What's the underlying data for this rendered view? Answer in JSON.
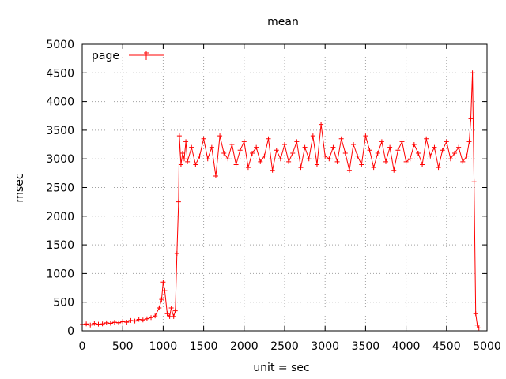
{
  "chart_data": {
    "type": "line",
    "title": "mean",
    "xlabel": "unit = sec",
    "ylabel": "msec",
    "xlim": [
      0,
      5000
    ],
    "ylim": [
      0,
      5000
    ],
    "x_ticks": [
      "0",
      "500",
      "1000",
      "1500",
      "2000",
      "2500",
      "3000",
      "3500",
      "4000",
      "4500",
      "5000"
    ],
    "y_ticks": [
      "0",
      "500",
      "1000",
      "1500",
      "2000",
      "2500",
      "3000",
      "3500",
      "4000",
      "4500",
      "5000"
    ],
    "grid": true,
    "legend_position": "top-left",
    "series": [
      {
        "name": "page",
        "color": "#ff0000",
        "marker": "plus",
        "x": [
          0,
          50,
          100,
          150,
          200,
          250,
          300,
          350,
          400,
          450,
          500,
          550,
          600,
          650,
          700,
          750,
          800,
          850,
          900,
          950,
          980,
          1000,
          1020,
          1050,
          1080,
          1100,
          1130,
          1150,
          1170,
          1190,
          1200,
          1220,
          1240,
          1260,
          1280,
          1300,
          1350,
          1400,
          1450,
          1500,
          1550,
          1600,
          1650,
          1700,
          1750,
          1800,
          1850,
          1900,
          1950,
          2000,
          2050,
          2100,
          2150,
          2200,
          2250,
          2300,
          2350,
          2400,
          2450,
          2500,
          2550,
          2600,
          2650,
          2700,
          2750,
          2800,
          2850,
          2900,
          2950,
          3000,
          3050,
          3100,
          3150,
          3200,
          3250,
          3300,
          3350,
          3400,
          3450,
          3500,
          3550,
          3600,
          3650,
          3700,
          3750,
          3800,
          3850,
          3900,
          3950,
          4000,
          4050,
          4100,
          4150,
          4200,
          4250,
          4300,
          4350,
          4400,
          4450,
          4500,
          4550,
          4600,
          4650,
          4700,
          4750,
          4780,
          4800,
          4820,
          4840,
          4860,
          4880,
          4900
        ],
        "y": [
          110,
          120,
          100,
          130,
          115,
          120,
          140,
          130,
          150,
          140,
          160,
          150,
          180,
          170,
          200,
          190,
          210,
          230,
          260,
          400,
          550,
          850,
          700,
          300,
          250,
          400,
          250,
          350,
          1350,
          2250,
          3400,
          2900,
          3100,
          3000,
          3300,
          2950,
          3200,
          2900,
          3050,
          3350,
          3000,
          3200,
          2700,
          3400,
          3100,
          3000,
          3250,
          2900,
          3150,
          3300,
          2850,
          3100,
          3200,
          2950,
          3050,
          3350,
          2800,
          3150,
          3000,
          3250,
          2950,
          3100,
          3300,
          2850,
          3200,
          3000,
          3400,
          2900,
          3600,
          3050,
          3000,
          3200,
          2950,
          3350,
          3100,
          2800,
          3250,
          3050,
          2900,
          3400,
          3150,
          2850,
          3100,
          3300,
          2950,
          3200,
          2800,
          3150,
          3300,
          2950,
          3000,
          3250,
          3100,
          2900,
          3350,
          3050,
          3200,
          2850,
          3150,
          3300,
          3000,
          3100,
          3200,
          2950,
          3050,
          3300,
          3700,
          4500,
          2600,
          300,
          100,
          50
        ]
      }
    ]
  }
}
